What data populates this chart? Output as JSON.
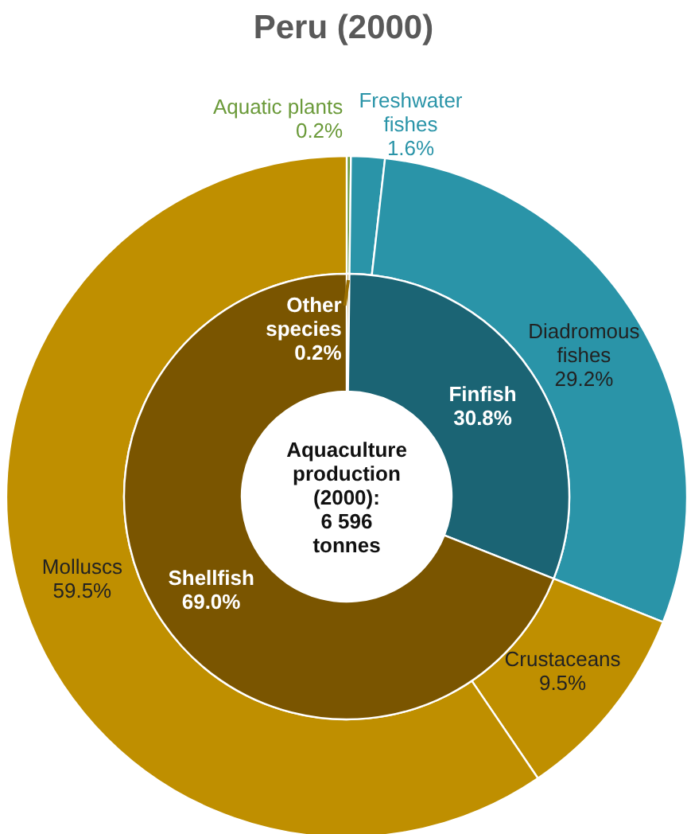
{
  "chart_data": [
    {
      "type": "donut",
      "title": "Peru (2000)",
      "annotations": [
        "Aquaculture\nproduction\n(2000):\n6 596\ntonnes"
      ],
      "categories": [
        "Aquatic plants",
        "Freshwater\nfishes",
        "Diadromous\nfishes",
        "Crustaceans",
        "Molluscs"
      ],
      "values": [
        0.2,
        1.6,
        29.2,
        9.5,
        59.5
      ],
      "value_labels": [
        "0.2%",
        "1.6%",
        "29.2%",
        "9.5%",
        "59.5%"
      ],
      "colors": [
        "#6b9a3a",
        "#2a94a8",
        "#2a94a8",
        "#bf8f00",
        "#bf8f00"
      ]
    },
    {
      "type": "donut",
      "categories": [
        "Other\nspecies",
        "Finfish",
        "Shellfish"
      ],
      "values": [
        0.2,
        30.8,
        69.0
      ],
      "value_labels": [
        "0.2%",
        "30.8%",
        "69.0%"
      ],
      "colors": [
        "#9a6e00",
        "#1b6474",
        "#7a5500"
      ]
    }
  ]
}
